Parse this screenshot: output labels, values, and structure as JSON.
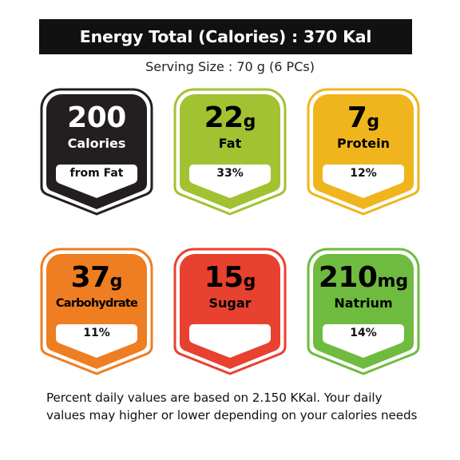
{
  "title": "Energy Total (Calories) : 370 Kal",
  "serving": "Serving Size : 70 g (6 PCs)",
  "badges": [
    {
      "value": "200",
      "unit": "",
      "name": "Calories",
      "sub": "from Fat",
      "color": "#231f20",
      "text_color": "#ffffff"
    },
    {
      "value": "22",
      "unit": "g",
      "name": "Fat",
      "sub": "33%",
      "color": "#a2c232",
      "text_color": "#111111"
    },
    {
      "value": "7",
      "unit": "g",
      "name": "Protein",
      "sub": "12%",
      "color": "#f0b51c",
      "text_color": "#111111"
    },
    {
      "value": "37",
      "unit": "g",
      "name": "Carbohydrate",
      "sub": "11%",
      "color": "#ef7d21",
      "text_color": "#111111"
    },
    {
      "value": "15",
      "unit": "g",
      "name": "Sugar",
      "sub": "",
      "color": "#e8412f",
      "text_color": "#111111"
    },
    {
      "value": "210",
      "unit": "mg",
      "name": "Natrium",
      "sub": "14%",
      "color": "#6fbb3f",
      "text_color": "#111111"
    }
  ],
  "footer": "Percent daily values are based on 2.150 KKal. Your daily values may higher or lower depending on your calories needs"
}
